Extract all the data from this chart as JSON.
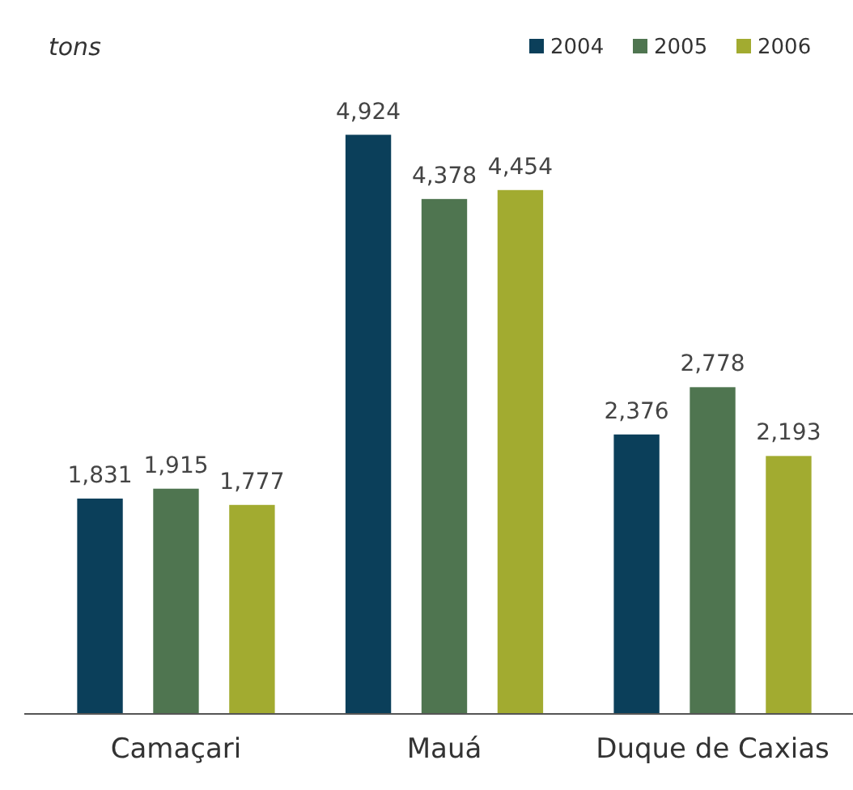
{
  "chart_data": {
    "type": "bar",
    "ylabel": "tons",
    "categories": [
      "Camaçari",
      "Mauá",
      "Duque de Caxias"
    ],
    "series": [
      {
        "name": "2004",
        "color": "#0b3f5a",
        "values": [
          1831,
          4924,
          2376
        ],
        "value_labels": [
          "1,831",
          "4,924",
          "2,376"
        ]
      },
      {
        "name": "2005",
        "color": "#4f7550",
        "values": [
          1915,
          4378,
          2778
        ],
        "value_labels": [
          "1,915",
          "4,378",
          "2,778"
        ]
      },
      {
        "name": "2006",
        "color": "#a2ab30",
        "values": [
          1777,
          4454,
          2193
        ],
        "value_labels": [
          "1,777",
          "4,454",
          "2,193"
        ]
      }
    ],
    "legend": "top right",
    "grid": false,
    "tick_labels": "x"
  }
}
